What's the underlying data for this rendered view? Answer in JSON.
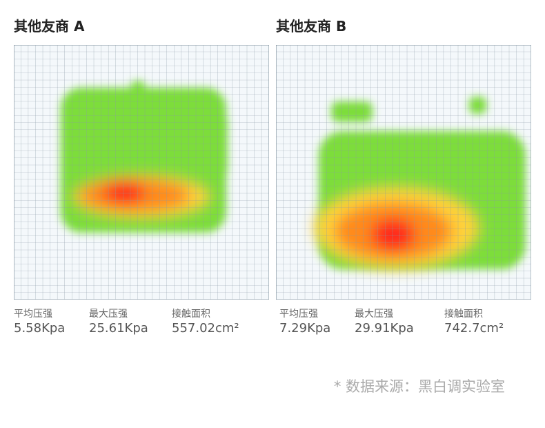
{
  "panels": [
    {
      "title": "其他友商 A",
      "stats": [
        {
          "label": "平均压强",
          "value": "5.58Kpa"
        },
        {
          "label": "最大压强",
          "value": "25.61Kpa"
        },
        {
          "label": "接触面积",
          "value": "557.02cm²"
        }
      ]
    },
    {
      "title": "其他友商 B",
      "stats": [
        {
          "label": "平均压强",
          "value": "7.29Kpa"
        },
        {
          "label": "最大压强",
          "value": "29.91Kpa"
        },
        {
          "label": "接触面积",
          "value": "742.7cm²"
        }
      ]
    }
  ],
  "footnote": "* 数据来源：黑白调实验室"
}
